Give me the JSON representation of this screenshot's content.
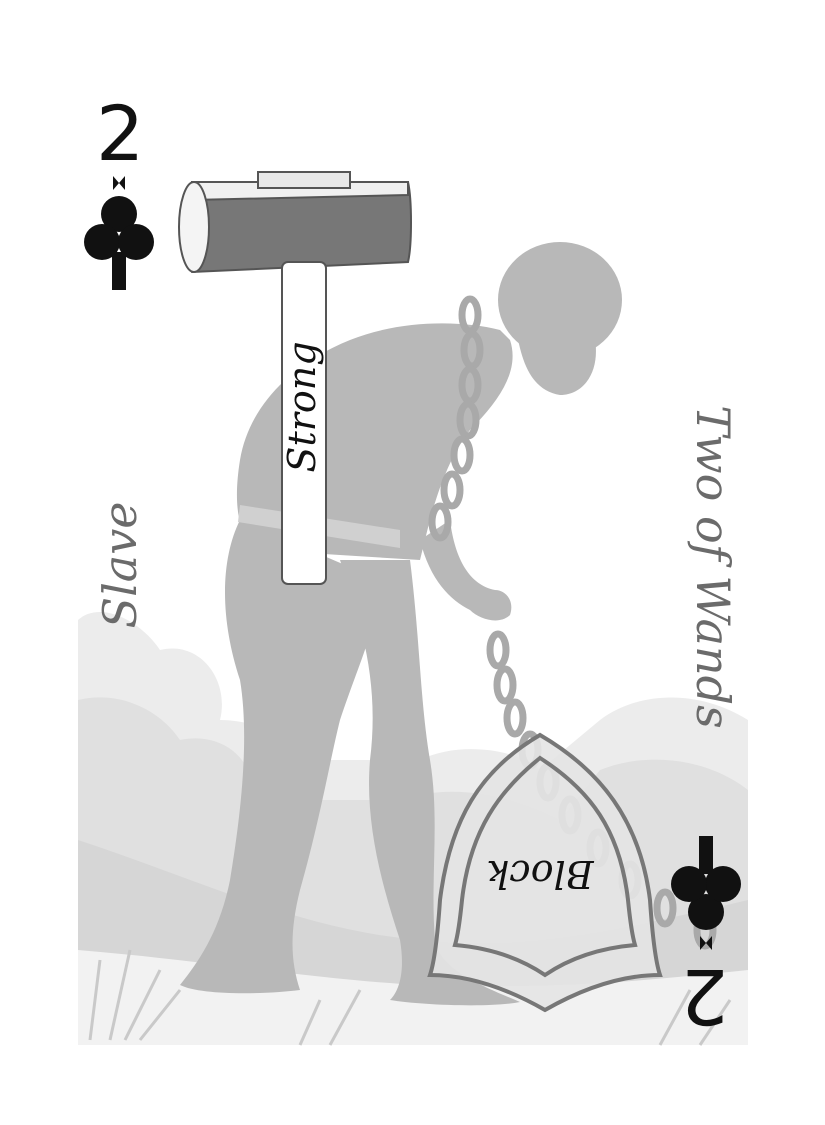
{
  "card": {
    "rank": "2",
    "suit_icon": "club-icon",
    "title_left": "Slave",
    "title_right": "Two of Wands",
    "hammer_label": "Strong",
    "shield_label": "Block"
  },
  "colors": {
    "ink": "#111111",
    "figure": "#b8b8b8",
    "side_text": "#6b6b6b",
    "background": "#ffffff"
  }
}
